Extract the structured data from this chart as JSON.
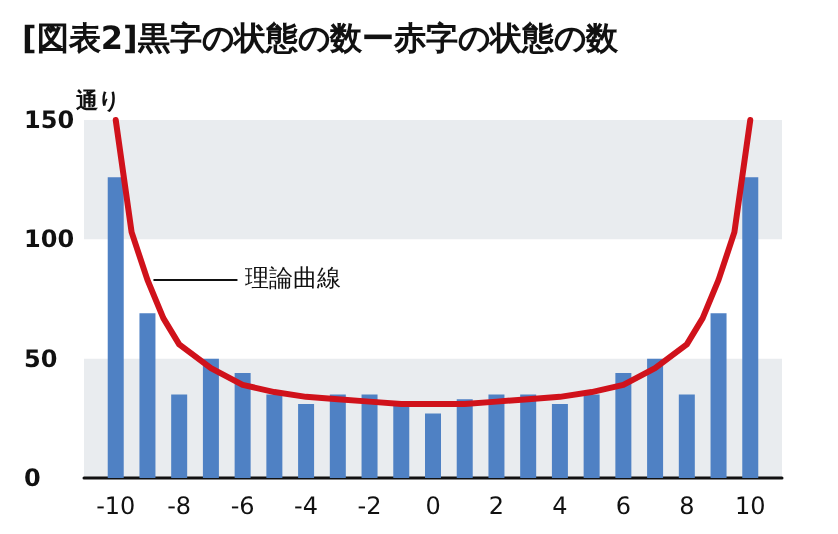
{
  "chart_data": {
    "type": "bar",
    "title": "[図表2]黒字の状態の数ー赤字の状態の数",
    "ylabel": "通り",
    "x": [
      -10,
      -9,
      -8,
      -7,
      -6,
      -5,
      -4,
      -3,
      -2,
      -1,
      0,
      1,
      2,
      3,
      4,
      5,
      6,
      7,
      8,
      9,
      10
    ],
    "series": [
      {
        "color": "#4f81c4",
        "values": [
          126,
          69,
          35,
          50,
          44,
          35,
          31,
          35,
          35,
          31,
          27,
          33,
          35,
          35,
          31,
          35,
          44,
          50,
          35,
          69,
          126
        ]
      },
      {
        "type": "line",
        "name": "理論曲線",
        "color": "#d0121b",
        "x": [
          -10,
          -9.5,
          -9,
          -8.5,
          -8,
          -7,
          -6,
          -5,
          -4,
          -3,
          -2,
          -1,
          0,
          1,
          2,
          3,
          4,
          5,
          6,
          7,
          8,
          8.5,
          9,
          9.5,
          10
        ],
        "values": [
          150,
          103,
          83,
          67,
          56,
          46,
          39,
          36,
          34,
          33,
          32,
          31,
          31,
          31,
          32,
          33,
          34,
          36,
          39,
          46,
          56,
          67,
          83,
          103,
          150
        ]
      }
    ],
    "xlim": [
      -11,
      11
    ],
    "xticks": [
      -10,
      -8,
      -6,
      -4,
      -2,
      0,
      2,
      4,
      6,
      8,
      10
    ],
    "ylim": [
      0,
      150
    ],
    "yticks": [
      0,
      50,
      100,
      150
    ],
    "bands": [
      {
        "axis": "y",
        "from": 0,
        "to": 50,
        "color": "#e9ecef"
      },
      {
        "axis": "y",
        "from": 100,
        "to": 150,
        "color": "#e9ecef"
      }
    ],
    "legend": false,
    "marker": "none",
    "line_style": "solid"
  }
}
